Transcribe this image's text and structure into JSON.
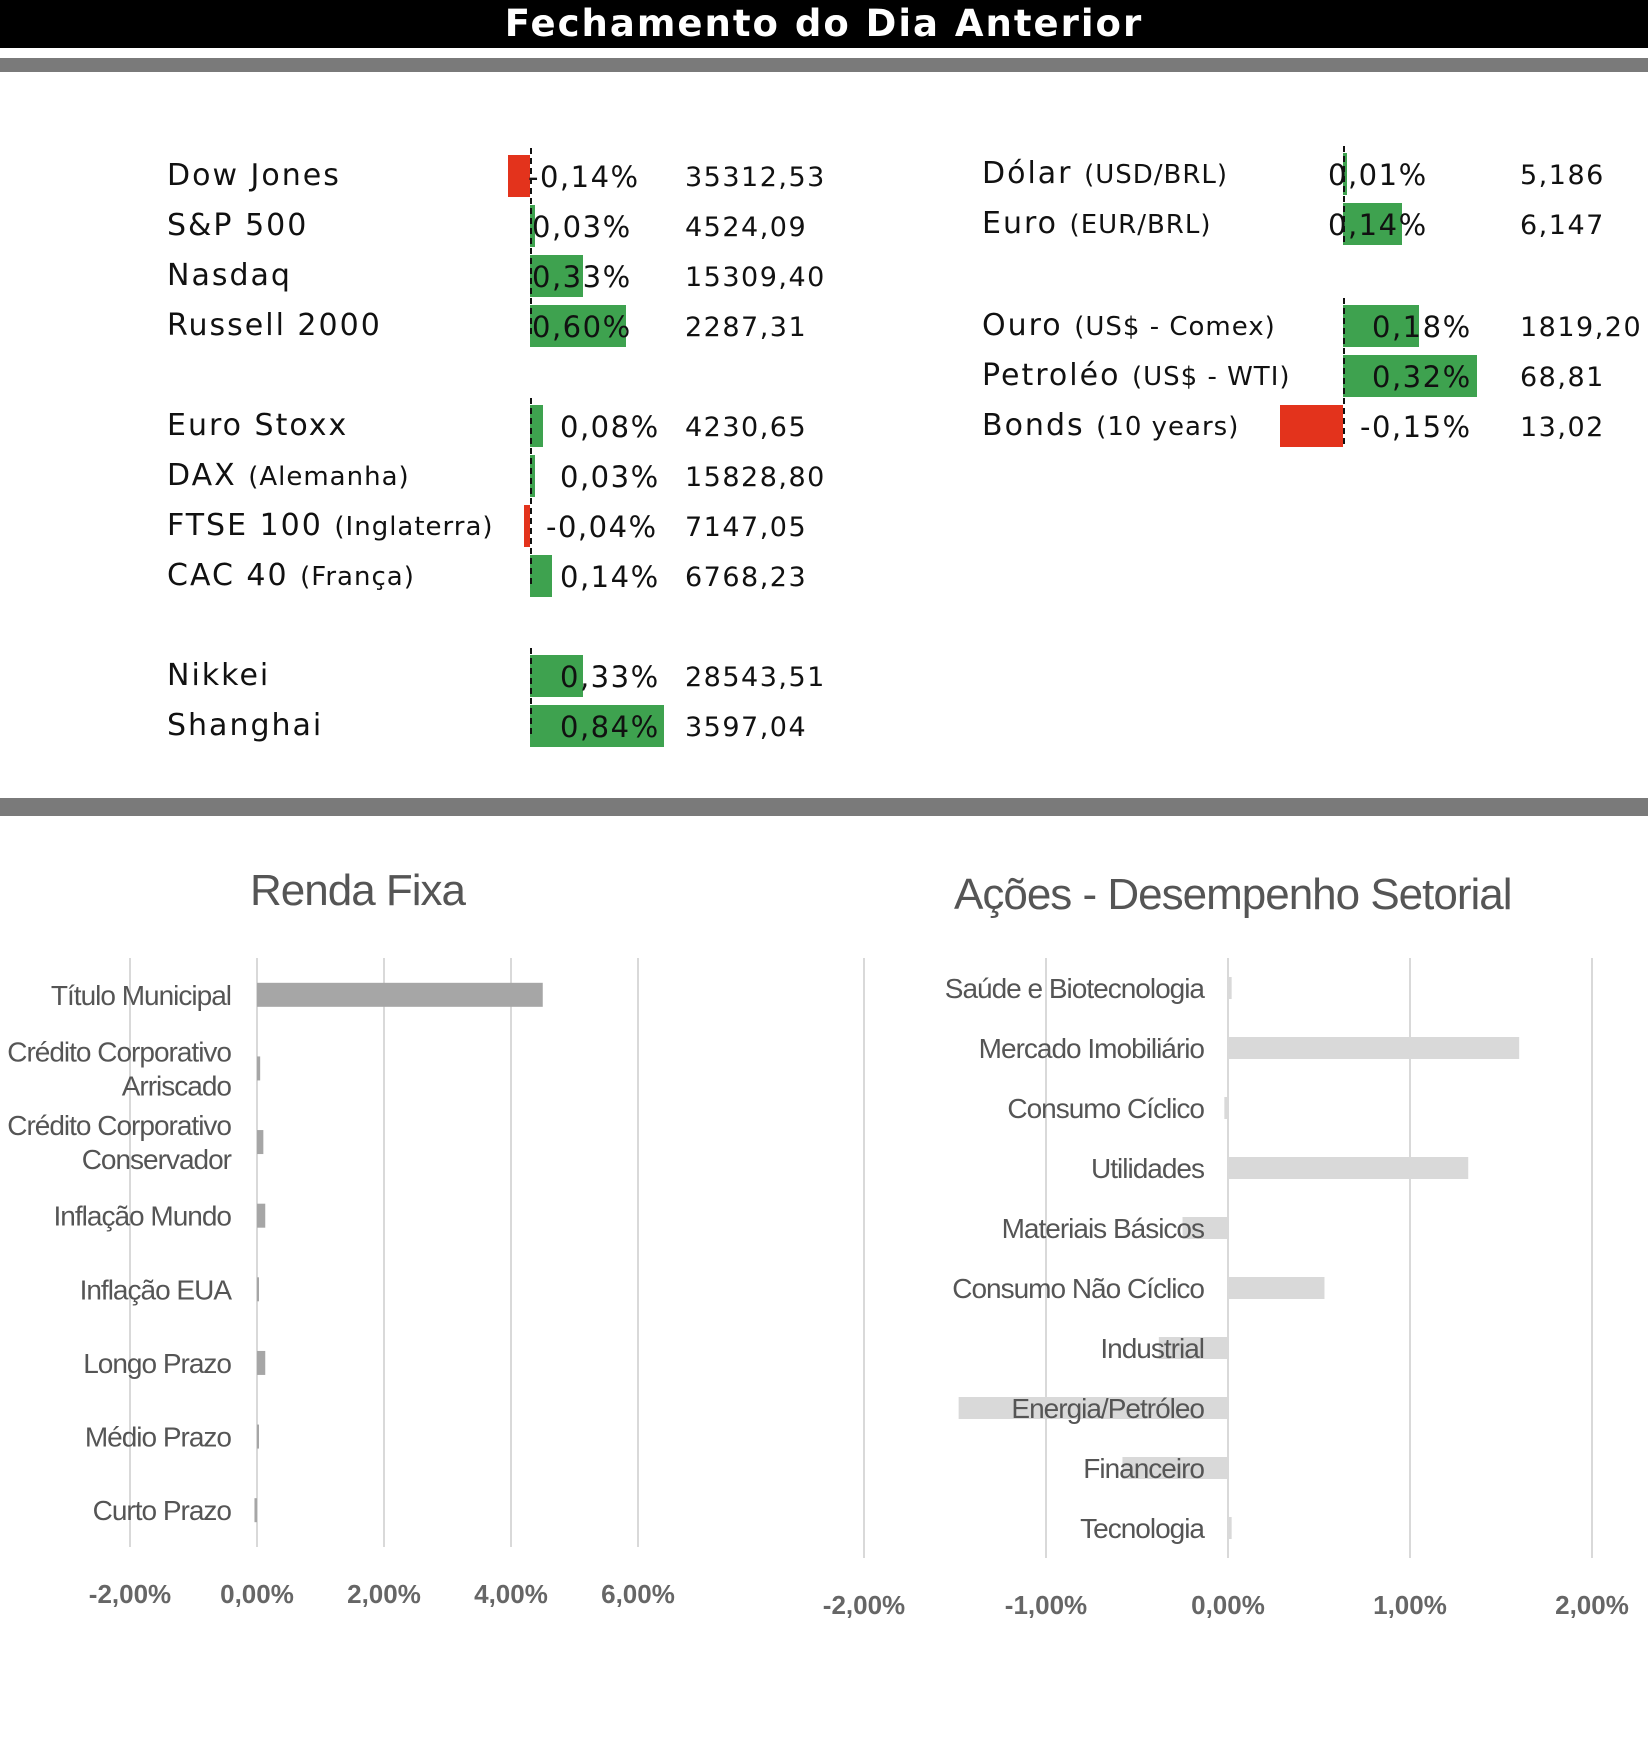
{
  "header": {
    "title": "Fechamento do Dia Anterior"
  },
  "colors": {
    "positive": "#3ea24f",
    "negative": "#e3331c",
    "divider": "#7a7a7a",
    "rf_bar": "#a6a6a6",
    "sector_bar": "#d9d9d9"
  },
  "markets": {
    "stocks": [
      {
        "name": "Dow Jones",
        "sub": "",
        "pct": "-0,14%",
        "pct_value": -0.14,
        "value": "35312,53"
      },
      {
        "name": "S&P 500",
        "sub": "",
        "pct": "0,03%",
        "pct_value": 0.03,
        "value": "4524,09"
      },
      {
        "name": "Nasdaq",
        "sub": "",
        "pct": "0,33%",
        "pct_value": 0.33,
        "value": "15309,40"
      },
      {
        "name": "Russell 2000",
        "sub": "",
        "pct": "0,60%",
        "pct_value": 0.6,
        "value": "2287,31"
      },
      {
        "name": "Euro Stoxx",
        "sub": "",
        "pct": "0,08%",
        "pct_value": 0.08,
        "value": "4230,65"
      },
      {
        "name": "DAX",
        "sub": "(Alemanha)",
        "pct": "0,03%",
        "pct_value": 0.03,
        "value": "15828,80"
      },
      {
        "name": "FTSE 100",
        "sub": "(Inglaterra)",
        "pct": "-0,04%",
        "pct_value": -0.04,
        "value": "7147,05"
      },
      {
        "name": "CAC 40",
        "sub": "(França)",
        "pct": "0,14%",
        "pct_value": 0.14,
        "value": "6768,23"
      },
      {
        "name": "Nikkei",
        "sub": "",
        "pct": "0,33%",
        "pct_value": 0.33,
        "value": "28543,51"
      },
      {
        "name": "Shanghai",
        "sub": "",
        "pct": "0,84%",
        "pct_value": 0.84,
        "value": "3597,04"
      }
    ],
    "others": [
      {
        "name": "Dólar",
        "sub": "(USD/BRL)",
        "pct": "0,01%",
        "pct_value": 0.01,
        "value": "5,186"
      },
      {
        "name": "Euro",
        "sub": "(EUR/BRL)",
        "pct": "0,14%",
        "pct_value": 0.14,
        "value": "6,147"
      },
      {
        "name": "Ouro",
        "sub": "(US$ - Comex)",
        "pct": "0,18%",
        "pct_value": 0.18,
        "value": "1819,20"
      },
      {
        "name": "Petroléo",
        "sub": "(US$ - WTI)",
        "pct": "0,32%",
        "pct_value": 0.32,
        "value": "68,81"
      },
      {
        "name": "Bonds",
        "sub": "(10 years)",
        "pct": "-0,15%",
        "pct_value": -0.15,
        "value": "13,02"
      }
    ]
  },
  "chart_data": [
    {
      "type": "bar",
      "orientation": "horizontal",
      "title": "Renda Fixa",
      "categories": [
        "Título Municipal",
        "Crédito Corporativo Arriscado",
        "Crédito Corporativo Conservador",
        "Inflação Mundo",
        "Inflação EUA",
        "Longo Prazo",
        "Médio Prazo",
        "Curto Prazo"
      ],
      "category_lines": [
        [
          "Título Municipal"
        ],
        [
          "Crédito Corporativo",
          "Arriscado"
        ],
        [
          "Crédito Corporativo",
          "Conservador"
        ],
        [
          "Inflação Mundo"
        ],
        [
          "Inflação EUA"
        ],
        [
          "Longo Prazo"
        ],
        [
          "Médio Prazo"
        ],
        [
          "Curto Prazo"
        ]
      ],
      "values": [
        4.5,
        0.05,
        0.1,
        0.13,
        0.02,
        0.13,
        0.02,
        -0.04
      ],
      "xlim": [
        -2,
        6
      ],
      "xticks": [
        -2,
        0,
        2,
        4,
        6
      ],
      "xtick_labels": [
        "-2,00%",
        "0,00%",
        "2,00%",
        "4,00%",
        "6,00%"
      ],
      "grid": true,
      "legend": "none"
    },
    {
      "type": "bar",
      "orientation": "horizontal",
      "title": "Ações - Desempenho Setorial",
      "categories": [
        "Saúde e Biotecnologia",
        "Mercado Imobiliário",
        "Consumo Cíclico",
        "Utilidades",
        "Materiais Básicos",
        "Consumo Não Cíclico",
        "Industrial",
        "Energia/Petróleo",
        "Financeiro",
        "Tecnologia"
      ],
      "values": [
        0.02,
        1.6,
        -0.02,
        1.32,
        -0.25,
        0.53,
        -0.38,
        -1.48,
        -0.58,
        0.02
      ],
      "xlim": [
        -2,
        2
      ],
      "xticks": [
        -2,
        -1,
        0,
        1,
        2
      ],
      "xtick_labels": [
        "-2,00%",
        "-1,00%",
        "0,00%",
        "1,00%",
        "2,00%"
      ],
      "grid": true,
      "legend": "none"
    }
  ]
}
